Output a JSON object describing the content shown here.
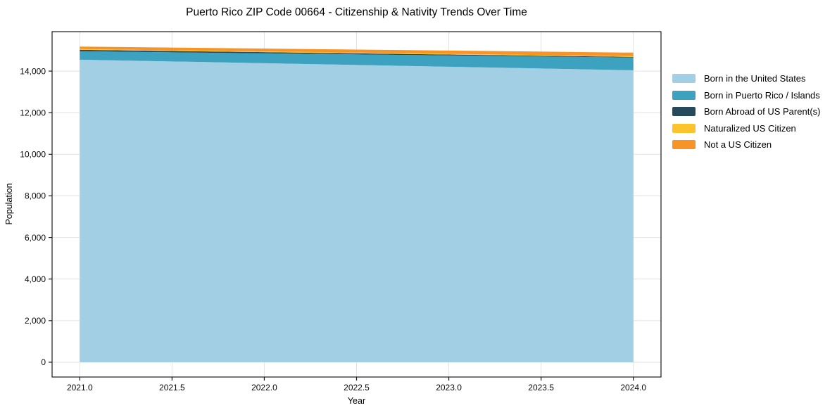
{
  "chart_data": {
    "type": "area",
    "stacked": true,
    "title": "Puerto Rico ZIP Code 00664 - Citizenship & Nativity Trends Over Time",
    "xlabel": "Year",
    "ylabel": "Population",
    "x": [
      2021,
      2022,
      2023,
      2024
    ],
    "series": [
      {
        "name": "Born in the United States",
        "color": "#a3cfe5",
        "values": [
          14550,
          14380,
          14210,
          14040
        ]
      },
      {
        "name": "Born in Puerto Rico / Islands",
        "color": "#3da2bf",
        "values": [
          405,
          475,
          545,
          615
        ]
      },
      {
        "name": "Born Abroad of US Parent(s)",
        "color": "#27495c",
        "values": [
          70,
          57,
          44,
          30
        ]
      },
      {
        "name": "Naturalized US Citizen",
        "color": "#fcc32d",
        "values": [
          35,
          35,
          35,
          35
        ]
      },
      {
        "name": "Not a US Citizen",
        "color": "#f79428",
        "values": [
          120,
          137,
          153,
          170
        ]
      }
    ],
    "x_ticks": [
      2021.0,
      2021.5,
      2022.0,
      2022.5,
      2023.0,
      2023.5,
      2024.0
    ],
    "x_tick_labels": [
      "2021.0",
      "2021.5",
      "2022.0",
      "2022.5",
      "2023.0",
      "2023.5",
      "2024.0"
    ],
    "y_ticks": [
      0,
      2000,
      4000,
      6000,
      8000,
      10000,
      12000,
      14000
    ],
    "y_tick_labels": [
      "0",
      "2,000",
      "4,000",
      "6,000",
      "8,000",
      "10,000",
      "12,000",
      "14,000"
    ],
    "x_range": [
      2020.85,
      2024.15
    ],
    "y_range": [
      -712,
      15898
    ],
    "grid": true,
    "legend": {
      "position": "center-right-outside",
      "frame": false
    }
  }
}
